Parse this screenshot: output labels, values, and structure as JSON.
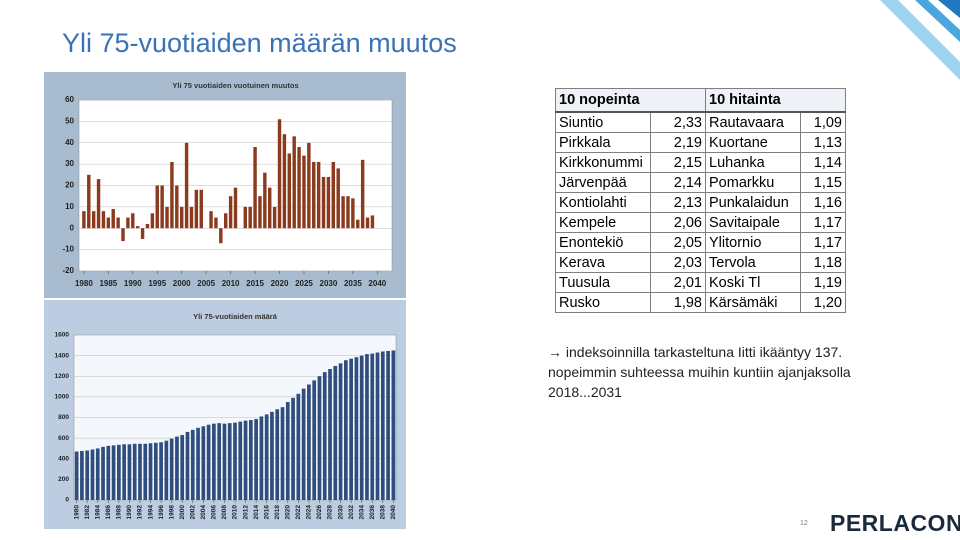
{
  "title": "Yli 75-vuotiaiden määrän muutos",
  "chart_data": [
    {
      "type": "bar",
      "title": "Yli 75 vuotiaiden vuotuinen muutos",
      "color": "#8b3a1e",
      "grid": true,
      "x": [
        1980,
        1981,
        1982,
        1983,
        1984,
        1985,
        1986,
        1987,
        1988,
        1989,
        1990,
        1991,
        1992,
        1993,
        1994,
        1995,
        1996,
        1997,
        1998,
        1999,
        2000,
        2001,
        2002,
        2003,
        2004,
        2005,
        2006,
        2007,
        2008,
        2009,
        2010,
        2011,
        2012,
        2013,
        2014,
        2015,
        2016,
        2017,
        2018,
        2019,
        2020,
        2021,
        2022,
        2023,
        2024,
        2025,
        2026,
        2027,
        2028,
        2029,
        2030,
        2031,
        2032,
        2033,
        2034,
        2035,
        2036,
        2037,
        2038,
        2039
      ],
      "values": [
        8,
        25,
        8,
        23,
        8,
        5,
        9,
        5,
        -6,
        5,
        7,
        1,
        -5,
        2,
        7,
        20,
        20,
        10,
        31,
        20,
        10,
        40,
        10,
        18,
        18,
        0,
        8,
        5,
        -7,
        7,
        15,
        19,
        0,
        10,
        10,
        38,
        15,
        26,
        19,
        10,
        51,
        44,
        35,
        43,
        38,
        34,
        40,
        31,
        31,
        24,
        24,
        31,
        28,
        15,
        15,
        14,
        4,
        32,
        5,
        6
      ],
      "xlim": [
        1979,
        2043
      ],
      "xticks": [
        1980,
        1985,
        1990,
        1995,
        2000,
        2005,
        2010,
        2015,
        2020,
        2025,
        2030,
        2035,
        2040
      ],
      "ylim": [
        -20,
        60
      ],
      "yticks": [
        -20,
        -10,
        0,
        10,
        20,
        30,
        40,
        50,
        60
      ]
    },
    {
      "type": "bar",
      "title": "Yli 75-vuotiaiden määrä",
      "color": "#2f4e7e",
      "grid": true,
      "x": [
        1980,
        1981,
        1982,
        1983,
        1984,
        1985,
        1986,
        1987,
        1988,
        1989,
        1990,
        1991,
        1992,
        1993,
        1994,
        1995,
        1996,
        1997,
        1998,
        1999,
        2000,
        2001,
        2002,
        2003,
        2004,
        2005,
        2006,
        2007,
        2008,
        2009,
        2010,
        2011,
        2012,
        2013,
        2014,
        2015,
        2016,
        2017,
        2018,
        2019,
        2020,
        2021,
        2022,
        2023,
        2024,
        2025,
        2026,
        2027,
        2028,
        2029,
        2030,
        2031,
        2032,
        2033,
        2034,
        2035,
        2036,
        2037,
        2038,
        2039,
        2040
      ],
      "values": [
        470,
        475,
        480,
        490,
        500,
        515,
        525,
        530,
        535,
        540,
        540,
        545,
        545,
        545,
        550,
        555,
        560,
        575,
        595,
        615,
        630,
        660,
        680,
        700,
        715,
        730,
        740,
        745,
        740,
        745,
        750,
        760,
        770,
        775,
        785,
        810,
        830,
        855,
        880,
        900,
        950,
        990,
        1030,
        1080,
        1120,
        1160,
        1200,
        1240,
        1270,
        1300,
        1325,
        1355,
        1370,
        1385,
        1400,
        1415,
        1420,
        1430,
        1440,
        1445,
        1450
      ],
      "xlim": [
        1979.5,
        2040.5
      ],
      "xticks": [
        1980,
        1982,
        1984,
        1986,
        1988,
        1990,
        1992,
        1994,
        1996,
        1998,
        2000,
        2002,
        2004,
        2006,
        2008,
        2010,
        2012,
        2014,
        2016,
        2018,
        2020,
        2022,
        2024,
        2026,
        2028,
        2030,
        2032,
        2034,
        2036,
        2038,
        2040
      ],
      "ylim": [
        0,
        1600
      ],
      "yticks": [
        0,
        200,
        400,
        600,
        800,
        1000,
        1200,
        1400,
        1600
      ]
    }
  ],
  "table": {
    "header": [
      "10 nopeinta",
      "10 hitainta"
    ],
    "rows": [
      [
        "Siuntio",
        "2,33",
        "Rautavaara",
        "1,09"
      ],
      [
        "Pirkkala",
        "2,19",
        "Kuortane",
        "1,13"
      ],
      [
        "Kirkkonummi",
        "2,15",
        "Luhanka",
        "1,14"
      ],
      [
        "Järvenpää",
        "2,14",
        "Pomarkku",
        "1,15"
      ],
      [
        "Kontiolahti",
        "2,13",
        "Punkalaidun",
        "1,16"
      ],
      [
        "Kempele",
        "2,06",
        "Savitaipale",
        "1,17"
      ],
      [
        "Enontekiö",
        "2,05",
        "Ylitornio",
        "1,17"
      ],
      [
        "Kerava",
        "2,03",
        "Tervola",
        "1,18"
      ],
      [
        "Tuusula",
        "2,01",
        "Koski Tl",
        "1,19"
      ],
      [
        "Rusko",
        "1,98",
        "Kärsämäki",
        "1,20"
      ]
    ]
  },
  "note": [
    "→ indeksoinnilla tarkasteltuna Iitti ikääntyy 137.",
    "nopeimmin suhteessa muihin kuntiin ajanjaksolla",
    "2018...2031"
  ],
  "page_number": "12",
  "logo": "PERLACON"
}
